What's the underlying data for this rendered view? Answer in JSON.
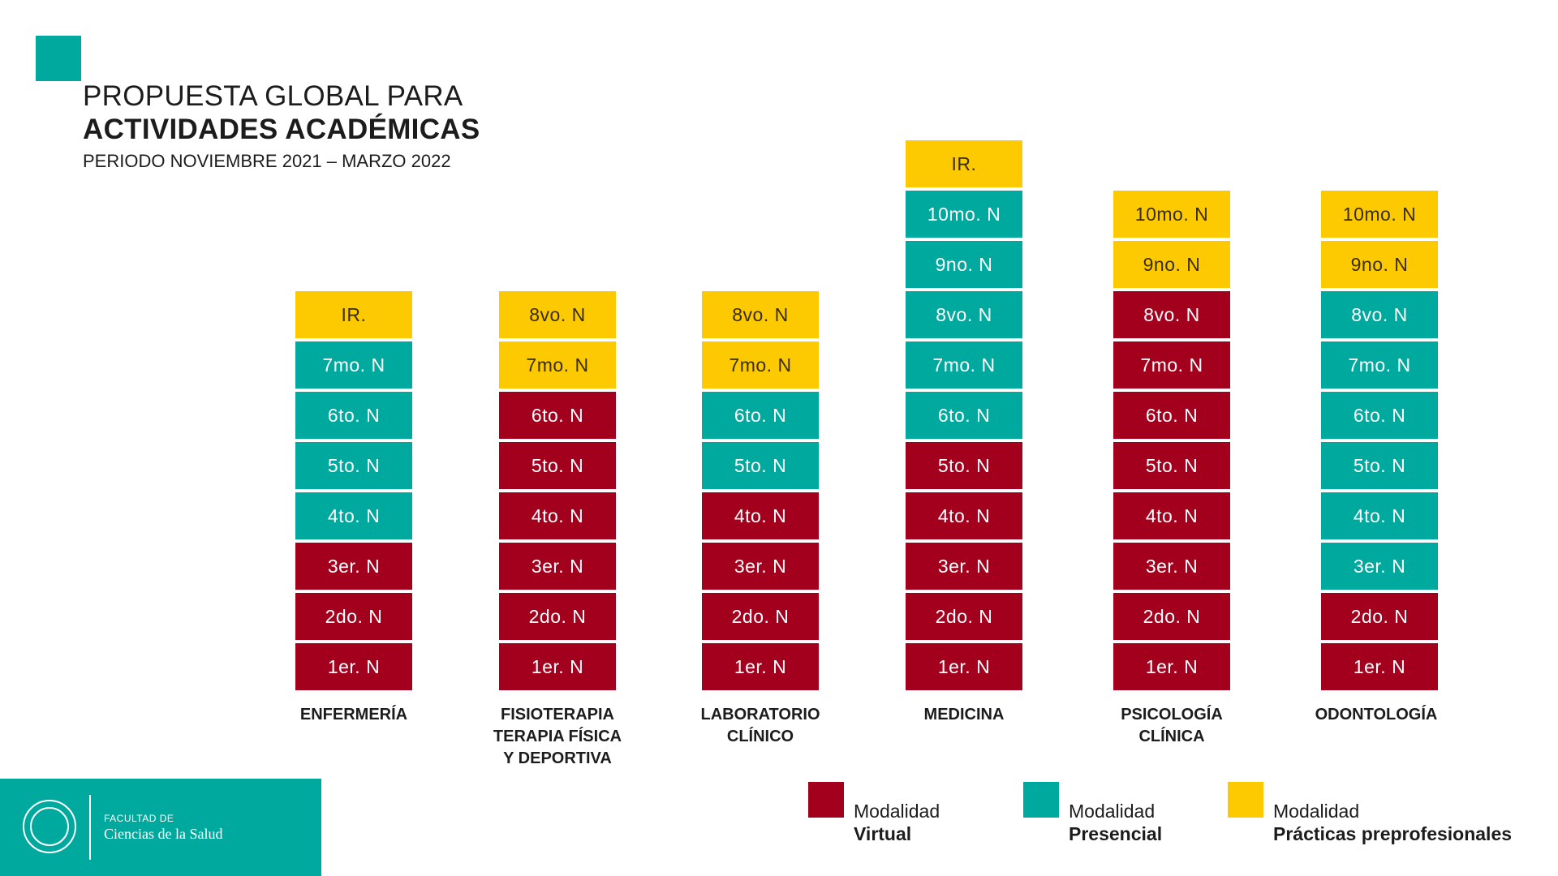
{
  "title": {
    "line1": "PROPUESTA GLOBAL PARA",
    "line2": "ACTIVIDADES ACADÉMICAS",
    "line3": "PERIODO NOVIEMBRE 2021 – MARZO 2022"
  },
  "colors": {
    "virtual": "#a3001e",
    "presencial": "#00a99d",
    "practicas": "#fdc900"
  },
  "columns": [
    {
      "label": "ENFERMERÍA",
      "cells": [
        {
          "text": "1er. N",
          "mode": "virtual"
        },
        {
          "text": "2do. N",
          "mode": "virtual"
        },
        {
          "text": "3er. N",
          "mode": "virtual"
        },
        {
          "text": "4to. N",
          "mode": "presencial"
        },
        {
          "text": "5to. N",
          "mode": "presencial"
        },
        {
          "text": "6to. N",
          "mode": "presencial"
        },
        {
          "text": "7mo. N",
          "mode": "presencial"
        },
        {
          "text": "IR.",
          "mode": "practicas"
        }
      ]
    },
    {
      "label": "FISIOTERAPIA\nTERAPIA FÍSICA\nY DEPORTIVA",
      "cells": [
        {
          "text": "1er. N",
          "mode": "virtual"
        },
        {
          "text": "2do. N",
          "mode": "virtual"
        },
        {
          "text": "3er. N",
          "mode": "virtual"
        },
        {
          "text": "4to. N",
          "mode": "virtual"
        },
        {
          "text": "5to. N",
          "mode": "virtual"
        },
        {
          "text": "6to. N",
          "mode": "virtual"
        },
        {
          "text": "7mo. N",
          "mode": "practicas"
        },
        {
          "text": "8vo. N",
          "mode": "practicas"
        }
      ]
    },
    {
      "label": "LABORATORIO\nCLÍNICO",
      "cells": [
        {
          "text": "1er. N",
          "mode": "virtual"
        },
        {
          "text": "2do. N",
          "mode": "virtual"
        },
        {
          "text": "3er. N",
          "mode": "virtual"
        },
        {
          "text": "4to. N",
          "mode": "virtual"
        },
        {
          "text": "5to. N",
          "mode": "presencial"
        },
        {
          "text": "6to. N",
          "mode": "presencial"
        },
        {
          "text": "7mo. N",
          "mode": "practicas"
        },
        {
          "text": "8vo. N",
          "mode": "practicas"
        }
      ]
    },
    {
      "label": "MEDICINA",
      "cells": [
        {
          "text": "1er. N",
          "mode": "virtual"
        },
        {
          "text": "2do. N",
          "mode": "virtual"
        },
        {
          "text": "3er. N",
          "mode": "virtual"
        },
        {
          "text": "4to. N",
          "mode": "virtual"
        },
        {
          "text": "5to. N",
          "mode": "virtual"
        },
        {
          "text": "6to. N",
          "mode": "presencial"
        },
        {
          "text": "7mo. N",
          "mode": "presencial"
        },
        {
          "text": "8vo. N",
          "mode": "presencial"
        },
        {
          "text": "9no. N",
          "mode": "presencial"
        },
        {
          "text": "10mo. N",
          "mode": "presencial"
        },
        {
          "text": "IR.",
          "mode": "practicas"
        }
      ]
    },
    {
      "label": "PSICOLOGÍA\nCLÍNICA",
      "cells": [
        {
          "text": "1er. N",
          "mode": "virtual"
        },
        {
          "text": "2do. N",
          "mode": "virtual"
        },
        {
          "text": "3er. N",
          "mode": "virtual"
        },
        {
          "text": "4to. N",
          "mode": "virtual"
        },
        {
          "text": "5to. N",
          "mode": "virtual"
        },
        {
          "text": "6to. N",
          "mode": "virtual"
        },
        {
          "text": "7mo. N",
          "mode": "virtual"
        },
        {
          "text": "8vo. N",
          "mode": "virtual"
        },
        {
          "text": "9no. N",
          "mode": "practicas"
        },
        {
          "text": "10mo. N",
          "mode": "practicas"
        }
      ]
    },
    {
      "label": "ODONTOLOGÍA",
      "cells": [
        {
          "text": "1er. N",
          "mode": "virtual"
        },
        {
          "text": "2do. N",
          "mode": "virtual"
        },
        {
          "text": "3er. N",
          "mode": "presencial"
        },
        {
          "text": "4to. N",
          "mode": "presencial"
        },
        {
          "text": "5to. N",
          "mode": "presencial"
        },
        {
          "text": "6to. N",
          "mode": "presencial"
        },
        {
          "text": "7mo. N",
          "mode": "presencial"
        },
        {
          "text": "8vo. N",
          "mode": "presencial"
        },
        {
          "text": "9no. N",
          "mode": "practicas"
        },
        {
          "text": "10mo. N",
          "mode": "practicas"
        }
      ]
    }
  ],
  "legend": {
    "virtual": {
      "line1": "Modalidad",
      "line2": "Virtual"
    },
    "presencial": {
      "line1": "Modalidad",
      "line2": "Presencial"
    },
    "practicas": {
      "line1": "Modalidad",
      "line2": "Prácticas preprofesionales"
    }
  },
  "footer": {
    "line1": "FACULTAD DE",
    "line2": "Ciencias de la Salud",
    "seal_icon": "university-seal-icon"
  }
}
